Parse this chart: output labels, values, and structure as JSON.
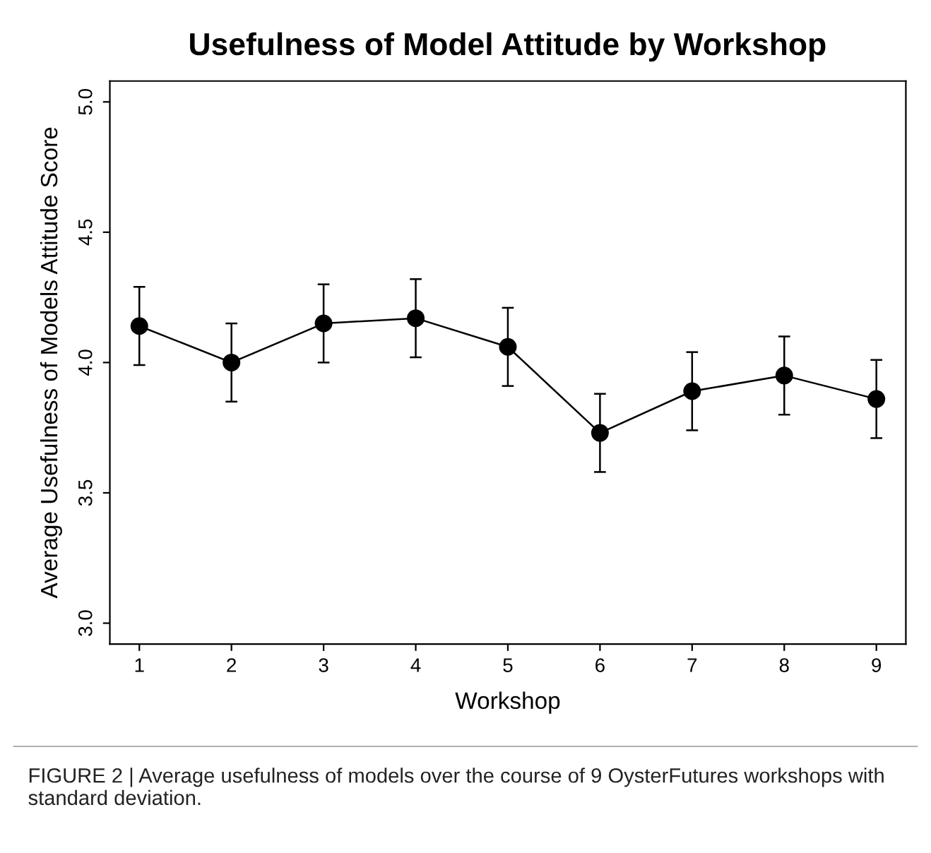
{
  "chart_data": {
    "type": "line",
    "title": "Usefulness of Model Attitude by Workshop",
    "xlabel": "Workshop",
    "ylabel": "Average Usefulness of Models Attitude Score",
    "x": [
      1,
      2,
      3,
      4,
      5,
      6,
      7,
      8,
      9
    ],
    "series": [
      {
        "color": "#000000",
        "values": [
          4.14,
          4.0,
          4.15,
          4.17,
          4.06,
          3.73,
          3.89,
          3.95,
          3.86
        ],
        "errors": [
          0.15,
          0.15,
          0.15,
          0.15,
          0.15,
          0.15,
          0.15,
          0.15,
          0.15
        ]
      }
    ],
    "xlim": [
      0.68,
      9.32
    ],
    "xticks": [
      1,
      2,
      3,
      4,
      5,
      6,
      7,
      8,
      9
    ],
    "ylim": [
      2.92,
      5.08
    ],
    "yticks": [
      {
        "value": 3,
        "label": "3.0"
      },
      3.5,
      {
        "value": 4,
        "label": "4.0"
      },
      4.5,
      {
        "value": 5,
        "label": "5.0"
      }
    ],
    "marker": "circle",
    "line_style": "solid",
    "grid": false,
    "legend": false,
    "annotations": [
      "FIGURE 2 | Average usefulness of models over the course of 9 OysterFutures workshops with standard deviation."
    ]
  }
}
